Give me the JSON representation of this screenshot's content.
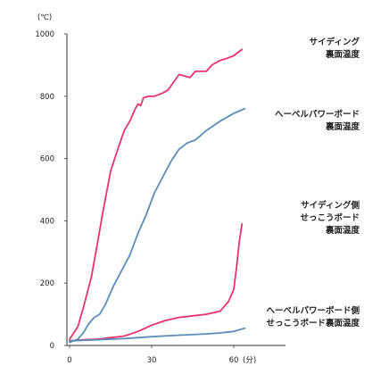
{
  "chart_data": {
    "type": "line",
    "title": "",
    "xlabel": "",
    "ylabel": "",
    "x_unit": "(分)",
    "y_unit": "(℃)",
    "xlim": [
      0,
      70
    ],
    "ylim": [
      0,
      1000
    ],
    "x_ticks": [
      0,
      30,
      60
    ],
    "y_ticks": [
      0,
      200,
      400,
      600,
      800,
      1000
    ],
    "grid": false,
    "series": [
      {
        "name_lines": [
          "サイディング",
          "裏面温度"
        ],
        "color": "#e8336e",
        "points": [
          [
            0,
            20
          ],
          [
            3,
            60
          ],
          [
            5,
            120
          ],
          [
            8,
            220
          ],
          [
            10,
            320
          ],
          [
            12,
            420
          ],
          [
            15,
            560
          ],
          [
            18,
            640
          ],
          [
            20,
            690
          ],
          [
            22,
            720
          ],
          [
            24,
            760
          ],
          [
            25,
            775
          ],
          [
            26,
            770
          ],
          [
            27,
            795
          ],
          [
            29,
            800
          ],
          [
            31,
            800
          ],
          [
            34,
            810
          ],
          [
            36,
            820
          ],
          [
            38,
            845
          ],
          [
            40,
            870
          ],
          [
            42,
            865
          ],
          [
            44,
            860
          ],
          [
            46,
            880
          ],
          [
            48,
            880
          ],
          [
            50,
            880
          ],
          [
            52,
            900
          ],
          [
            55,
            915
          ],
          [
            57,
            920
          ],
          [
            60,
            930
          ],
          [
            63,
            950
          ]
        ]
      },
      {
        "name_lines": [
          "へーベルパワーボード",
          "裏面温度"
        ],
        "color": "#5b8db8",
        "points": [
          [
            0,
            10
          ],
          [
            3,
            20
          ],
          [
            5,
            40
          ],
          [
            7,
            70
          ],
          [
            9,
            90
          ],
          [
            11,
            100
          ],
          [
            13,
            130
          ],
          [
            16,
            190
          ],
          [
            19,
            240
          ],
          [
            22,
            290
          ],
          [
            25,
            360
          ],
          [
            28,
            420
          ],
          [
            31,
            490
          ],
          [
            34,
            540
          ],
          [
            37,
            590
          ],
          [
            40,
            630
          ],
          [
            43,
            650
          ],
          [
            46,
            660
          ],
          [
            50,
            690
          ],
          [
            55,
            720
          ],
          [
            60,
            745
          ],
          [
            64,
            760
          ]
        ]
      },
      {
        "name_lines": [
          "サイディング側",
          "せっこうボード",
          "裏面温度"
        ],
        "color": "#e8336e",
        "points": [
          [
            0,
            15
          ],
          [
            5,
            18
          ],
          [
            10,
            20
          ],
          [
            15,
            25
          ],
          [
            20,
            30
          ],
          [
            25,
            45
          ],
          [
            30,
            65
          ],
          [
            35,
            80
          ],
          [
            40,
            90
          ],
          [
            45,
            95
          ],
          [
            50,
            100
          ],
          [
            55,
            110
          ],
          [
            58,
            140
          ],
          [
            60,
            180
          ],
          [
            61,
            250
          ],
          [
            62,
            330
          ],
          [
            63,
            390
          ]
        ]
      },
      {
        "name_lines": [
          "へーベルパワーボード側",
          "せっこうボード裏面温度"
        ],
        "color": "#5b8db8",
        "points": [
          [
            0,
            15
          ],
          [
            10,
            18
          ],
          [
            20,
            22
          ],
          [
            30,
            28
          ],
          [
            40,
            33
          ],
          [
            50,
            37
          ],
          [
            55,
            40
          ],
          [
            60,
            45
          ],
          [
            64,
            55
          ]
        ]
      }
    ]
  }
}
